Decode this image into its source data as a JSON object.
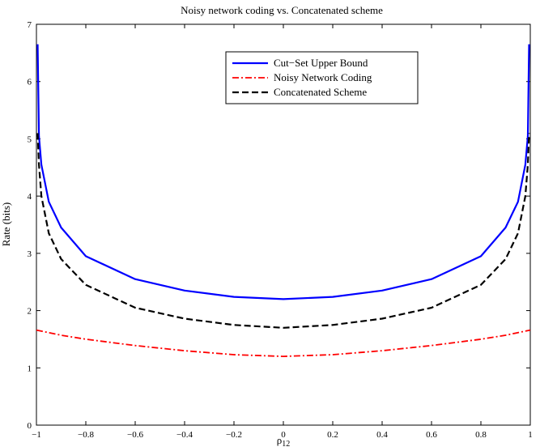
{
  "chart_data": {
    "type": "line",
    "title": "Noisy network coding vs. Concatenated scheme",
    "xlabel": "ρ12",
    "ylabel": "Rate (bits)",
    "xlim": [
      -1,
      1
    ],
    "ylim": [
      0,
      7
    ],
    "xticks": [
      -1,
      -0.8,
      -0.6,
      -0.4,
      -0.2,
      0,
      0.2,
      0.4,
      0.6,
      0.8,
      1
    ],
    "xtick_labels": [
      "−1",
      "−0.8",
      "−0.6",
      "−0.4",
      "−0.2",
      "0",
      "0.2",
      "0.4",
      "0.6",
      "0.8",
      "1"
    ],
    "yticks": [
      0,
      1,
      2,
      3,
      4,
      5,
      6,
      7
    ],
    "ytick_labels": [
      "0",
      "1",
      "2",
      "3",
      "4",
      "5",
      "6",
      "7"
    ],
    "grid": false,
    "legend_position": "top-center",
    "series": [
      {
        "name": "Cut−Set Upper Bound",
        "color": "#0000ff",
        "style": "solid",
        "x": [
          -0.995,
          -0.99,
          -0.98,
          -0.95,
          -0.9,
          -0.8,
          -0.6,
          -0.4,
          -0.2,
          0,
          0.2,
          0.4,
          0.6,
          0.8,
          0.9,
          0.95,
          0.98,
          0.99,
          0.995
        ],
        "y": [
          6.65,
          5.05,
          4.55,
          3.9,
          3.45,
          2.95,
          2.55,
          2.35,
          2.24,
          2.2,
          2.24,
          2.35,
          2.55,
          2.95,
          3.45,
          3.9,
          4.55,
          5.05,
          6.65
        ]
      },
      {
        "name": "Noisy Network Coding",
        "color": "#ff0000",
        "style": "dashdot",
        "x": [
          -1,
          -0.9,
          -0.8,
          -0.6,
          -0.4,
          -0.2,
          0,
          0.2,
          0.4,
          0.6,
          0.8,
          0.9,
          1
        ],
        "y": [
          1.66,
          1.57,
          1.5,
          1.39,
          1.3,
          1.23,
          1.2,
          1.23,
          1.3,
          1.39,
          1.5,
          1.57,
          1.66
        ]
      },
      {
        "name": "Concatenated Scheme",
        "color": "#000000",
        "style": "dashed",
        "x": [
          -0.995,
          -0.99,
          -0.98,
          -0.95,
          -0.9,
          -0.8,
          -0.6,
          -0.4,
          -0.2,
          0,
          0.2,
          0.4,
          0.6,
          0.8,
          0.9,
          0.95,
          0.98,
          0.99,
          0.995
        ],
        "y": [
          5.1,
          4.55,
          4.0,
          3.35,
          2.9,
          2.45,
          2.05,
          1.86,
          1.75,
          1.7,
          1.75,
          1.86,
          2.05,
          2.45,
          2.9,
          3.35,
          4.0,
          4.55,
          5.1
        ]
      }
    ]
  }
}
